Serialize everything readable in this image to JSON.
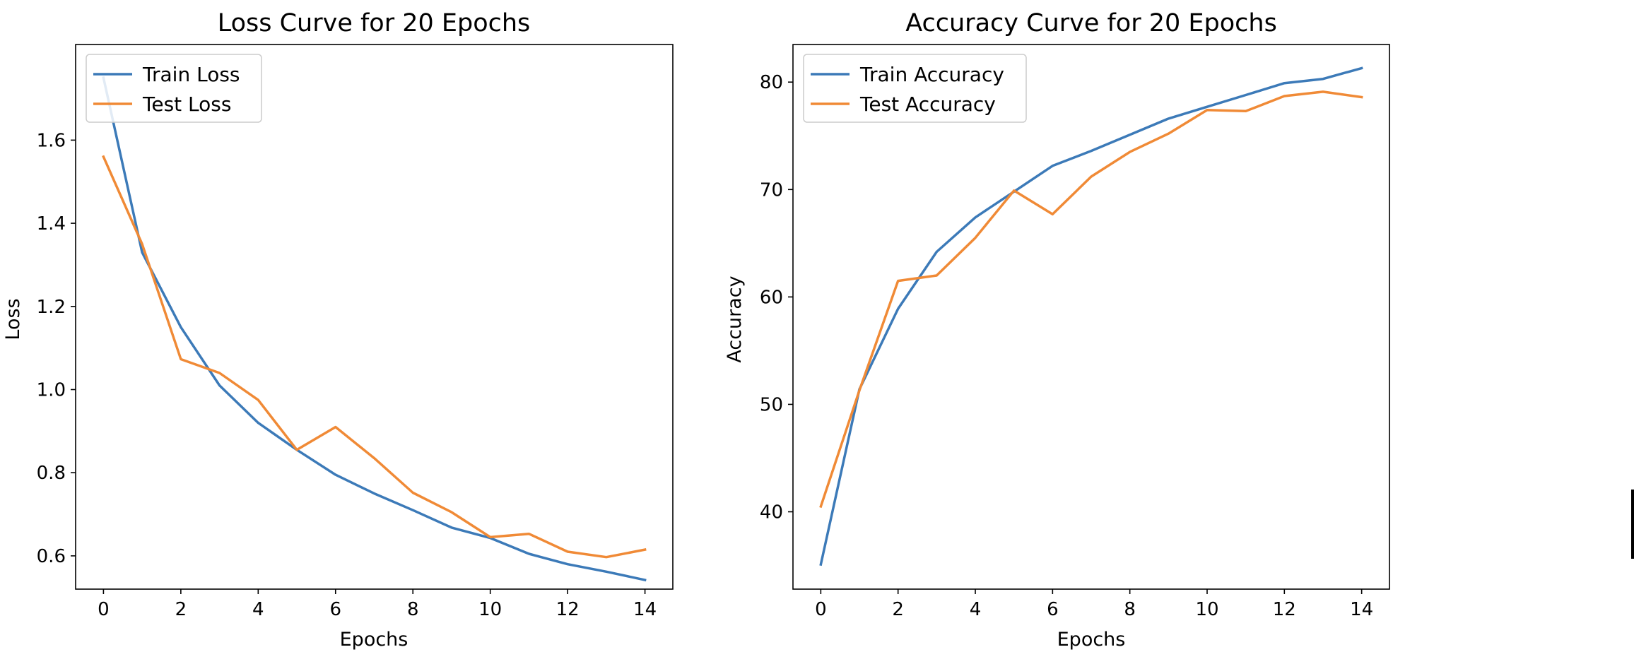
{
  "chart_data": [
    {
      "type": "line",
      "title": "Loss Curve for 20 Epochs",
      "xlabel": "Epochs",
      "ylabel": "Loss",
      "x": [
        0,
        1,
        2,
        3,
        4,
        5,
        6,
        7,
        8,
        9,
        10,
        11,
        12,
        13,
        14
      ],
      "xlim": [
        -0.72,
        14.72
      ],
      "ylim": [
        0.52,
        1.83
      ],
      "xticks": [
        0,
        2,
        4,
        6,
        8,
        10,
        12,
        14
      ],
      "yticks": [
        0.6,
        0.8,
        1.0,
        1.2,
        1.4,
        1.6
      ],
      "ytick_labels": [
        "0.6",
        "0.8",
        "1.0",
        "1.2",
        "1.4",
        "1.6"
      ],
      "grid": false,
      "legend_position": "upper-left",
      "series": [
        {
          "name": "Train Loss",
          "color": "#3c7ab8",
          "values": [
            1.75,
            1.33,
            1.15,
            1.01,
            0.92,
            0.855,
            0.795,
            0.75,
            0.71,
            0.668,
            0.643,
            0.605,
            0.58,
            0.562,
            0.542
          ]
        },
        {
          "name": "Test Loss",
          "color": "#f08a36",
          "values": [
            1.56,
            1.35,
            1.073,
            1.04,
            0.975,
            0.855,
            0.91,
            0.835,
            0.752,
            0.705,
            0.645,
            0.653,
            0.61,
            0.597,
            0.615
          ]
        }
      ]
    },
    {
      "type": "line",
      "title": "Accuracy Curve for 20 Epochs",
      "xlabel": "Epochs",
      "ylabel": "Accuracy",
      "x": [
        0,
        1,
        2,
        3,
        4,
        5,
        6,
        7,
        8,
        9,
        10,
        11,
        12,
        13,
        14
      ],
      "xlim": [
        -0.72,
        14.72
      ],
      "ylim": [
        32.8,
        83.5
      ],
      "xticks": [
        0,
        2,
        4,
        6,
        8,
        10,
        12,
        14
      ],
      "yticks": [
        40,
        50,
        60,
        70,
        80
      ],
      "ytick_labels": [
        "40",
        "50",
        "60",
        "70",
        "80"
      ],
      "grid": false,
      "legend_position": "upper-left",
      "series": [
        {
          "name": "Train Accuracy",
          "color": "#3c7ab8",
          "values": [
            35.1,
            51.4,
            58.9,
            64.2,
            67.4,
            69.8,
            72.2,
            73.6,
            75.1,
            76.6,
            77.7,
            78.8,
            79.9,
            80.3,
            81.3
          ]
        },
        {
          "name": "Test Accuracy",
          "color": "#f08a36",
          "values": [
            40.5,
            51.3,
            61.5,
            62.0,
            65.5,
            69.9,
            67.7,
            71.2,
            73.5,
            75.2,
            77.4,
            77.3,
            78.7,
            79.1,
            78.6
          ]
        }
      ]
    }
  ]
}
